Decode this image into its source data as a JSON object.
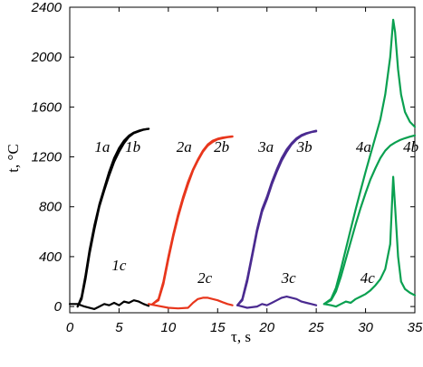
{
  "chart_data": {
    "type": "line",
    "xlabel": "τ, s",
    "ylabel": "t, °C",
    "xlim": [
      0,
      35
    ],
    "ylim": [
      -50,
      2400
    ],
    "xticks": [
      0,
      5,
      10,
      15,
      20,
      25,
      30,
      35
    ],
    "yticks": [
      0,
      400,
      800,
      1200,
      1600,
      2000,
      2400
    ],
    "xtick_labels": [
      "0",
      "5",
      "10",
      "15",
      "20",
      "25",
      "30",
      "35"
    ],
    "ytick_labels": [
      "0",
      "400",
      "800",
      "1200",
      "1600",
      "2000",
      "2400"
    ],
    "grid": false,
    "colors": {
      "group1": "#000000",
      "group2": "#e8361c",
      "group3": "#4a2a90",
      "group4": "#0aa050"
    },
    "series": [
      {
        "name": "1a",
        "group": "group1",
        "x": [
          0.8,
          1.2,
          1.6,
          2.0,
          2.5,
          3.0,
          3.5,
          4.0,
          4.5,
          5.0,
          5.5,
          6.0,
          6.5,
          7.0,
          7.5,
          8.0
        ],
        "y": [
          0,
          80,
          250,
          450,
          650,
          820,
          950,
          1080,
          1190,
          1270,
          1330,
          1370,
          1395,
          1410,
          1420,
          1425
        ]
      },
      {
        "name": "1b",
        "group": "group1",
        "x": [
          0.8,
          1.2,
          1.6,
          2.0,
          2.5,
          3.0,
          3.5,
          4.0,
          4.5,
          5.0,
          5.5,
          6.0,
          6.5,
          7.0,
          7.5,
          8.0
        ],
        "y": [
          0,
          60,
          220,
          420,
          620,
          800,
          930,
          1050,
          1160,
          1240,
          1310,
          1360,
          1390,
          1405,
          1418,
          1425
        ]
      },
      {
        "name": "1c",
        "group": "group1",
        "x": [
          0,
          0.8,
          1.5,
          2.5,
          3.0,
          3.5,
          4.0,
          4.5,
          5.0,
          5.5,
          6.0,
          6.5,
          7.0,
          7.5,
          8.0
        ],
        "y": [
          20,
          20,
          0,
          -20,
          0,
          20,
          10,
          30,
          10,
          40,
          30,
          50,
          40,
          20,
          5
        ]
      },
      {
        "name": "2a",
        "group": "group2",
        "x": [
          8.4,
          9.0,
          9.5,
          10.0,
          10.5,
          11.0,
          11.5,
          12.0,
          12.5,
          13.0,
          13.5,
          14.0,
          14.5,
          15.0,
          15.5,
          16.0,
          16.5
        ],
        "y": [
          20,
          60,
          200,
          400,
          580,
          740,
          880,
          1000,
          1100,
          1180,
          1250,
          1300,
          1330,
          1345,
          1355,
          1360,
          1365
        ]
      },
      {
        "name": "2b",
        "group": "group2",
        "x": [
          8.4,
          9.0,
          9.5,
          10.0,
          10.5,
          11.0,
          11.5,
          12.0,
          12.5,
          13.0,
          13.5,
          14.0,
          14.5,
          15.0,
          15.5,
          16.0,
          16.5
        ],
        "y": [
          20,
          50,
          180,
          380,
          560,
          720,
          860,
          980,
          1090,
          1170,
          1240,
          1290,
          1320,
          1340,
          1350,
          1358,
          1362
        ]
      },
      {
        "name": "2c",
        "group": "group2",
        "x": [
          8.0,
          9.0,
          10.0,
          11.0,
          12.0,
          12.5,
          13.0,
          13.5,
          14.0,
          14.5,
          15.0,
          15.5,
          16.0,
          16.5
        ],
        "y": [
          20,
          5,
          -10,
          -15,
          -10,
          30,
          60,
          70,
          70,
          60,
          50,
          35,
          20,
          10
        ]
      },
      {
        "name": "3a",
        "group": "group3",
        "x": [
          17.0,
          17.5,
          18.0,
          18.5,
          19.0,
          19.5,
          20.0,
          20.5,
          21.0,
          21.5,
          22.0,
          22.5,
          23.0,
          23.5,
          24.0,
          24.5,
          25.0
        ],
        "y": [
          10,
          60,
          220,
          420,
          620,
          780,
          880,
          1000,
          1100,
          1190,
          1260,
          1310,
          1350,
          1375,
          1390,
          1400,
          1410
        ]
      },
      {
        "name": "3b",
        "group": "group3",
        "x": [
          17.0,
          17.5,
          18.0,
          18.5,
          19.0,
          19.5,
          20.0,
          20.5,
          21.0,
          21.5,
          22.0,
          22.5,
          23.0,
          23.5,
          24.0,
          24.5,
          25.0
        ],
        "y": [
          10,
          50,
          200,
          400,
          600,
          760,
          860,
          980,
          1080,
          1170,
          1240,
          1300,
          1340,
          1368,
          1385,
          1398,
          1405
        ]
      },
      {
        "name": "3c",
        "group": "group3",
        "x": [
          17.0,
          18.0,
          19.0,
          19.5,
          20.0,
          20.5,
          21.0,
          21.5,
          22.0,
          22.5,
          23.0,
          23.5,
          24.0,
          24.5,
          25.0
        ],
        "y": [
          10,
          -10,
          0,
          20,
          10,
          30,
          50,
          70,
          80,
          70,
          60,
          40,
          30,
          20,
          10
        ]
      },
      {
        "name": "4a",
        "group": "group4",
        "x": [
          25.8,
          26.5,
          27.0,
          27.5,
          28.0,
          28.5,
          29.0,
          29.5,
          30.0,
          30.5,
          31.0,
          31.5,
          32.0,
          32.5,
          32.8,
          33.0,
          33.3,
          33.6,
          34.0,
          34.5,
          35.0
        ],
        "y": [
          20,
          60,
          150,
          300,
          460,
          620,
          780,
          930,
          1080,
          1220,
          1360,
          1500,
          1700,
          2000,
          2300,
          2200,
          1900,
          1700,
          1560,
          1480,
          1440
        ]
      },
      {
        "name": "4b",
        "group": "group4",
        "x": [
          25.8,
          26.5,
          27.0,
          27.5,
          28.0,
          28.5,
          29.0,
          29.5,
          30.0,
          30.5,
          31.0,
          31.5,
          32.0,
          32.5,
          33.0,
          33.5,
          34.0,
          34.5,
          35.0
        ],
        "y": [
          20,
          50,
          120,
          240,
          380,
          520,
          660,
          790,
          910,
          1020,
          1110,
          1190,
          1250,
          1290,
          1315,
          1335,
          1350,
          1362,
          1372
        ]
      },
      {
        "name": "4c",
        "group": "group4",
        "x": [
          25.8,
          26.5,
          27.0,
          27.5,
          28.0,
          28.5,
          29.0,
          29.5,
          30.0,
          30.5,
          31.0,
          31.5,
          32.0,
          32.5,
          32.8,
          33.0,
          33.3,
          33.6,
          34.0,
          34.5,
          35.0
        ],
        "y": [
          20,
          10,
          0,
          20,
          40,
          30,
          60,
          80,
          100,
          130,
          170,
          220,
          300,
          500,
          1040,
          800,
          400,
          200,
          140,
          110,
          90
        ]
      }
    ],
    "curve_labels": [
      {
        "text": "1a",
        "x": 3.3,
        "y": 1240
      },
      {
        "text": "1b",
        "x": 6.4,
        "y": 1240
      },
      {
        "text": "1c",
        "x": 5.0,
        "y": 290
      },
      {
        "text": "2a",
        "x": 11.6,
        "y": 1240
      },
      {
        "text": "2b",
        "x": 15.4,
        "y": 1240
      },
      {
        "text": "2c",
        "x": 13.7,
        "y": 190
      },
      {
        "text": "3a",
        "x": 19.9,
        "y": 1240
      },
      {
        "text": "3b",
        "x": 23.8,
        "y": 1240
      },
      {
        "text": "3c",
        "x": 22.2,
        "y": 190
      },
      {
        "text": "4a",
        "x": 29.8,
        "y": 1240
      },
      {
        "text": "4b",
        "x": 34.6,
        "y": 1240
      },
      {
        "text": "4c",
        "x": 30.2,
        "y": 190
      }
    ]
  }
}
